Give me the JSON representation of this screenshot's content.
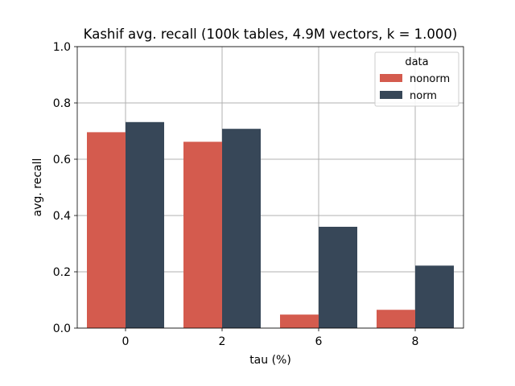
{
  "chart_data": {
    "type": "bar",
    "title": "Kashif avg. recall (100k tables, 4.9M vectors, k = 1.000)",
    "xlabel": "tau (%)",
    "ylabel": "avg. recall",
    "categories": [
      "0",
      "2",
      "6",
      "8"
    ],
    "ylim": [
      0,
      1.0
    ],
    "yticks": [
      "0.0",
      "0.2",
      "0.4",
      "0.6",
      "0.8",
      "1.0"
    ],
    "grid": true,
    "legend": {
      "title": "data",
      "placement": "top-right"
    },
    "series": [
      {
        "name": "nonorm",
        "color": "#d45b4e",
        "values": [
          0.696,
          0.662,
          0.048,
          0.065
        ]
      },
      {
        "name": "norm",
        "color": "#374758",
        "values": [
          0.732,
          0.708,
          0.36,
          0.222
        ]
      }
    ]
  }
}
